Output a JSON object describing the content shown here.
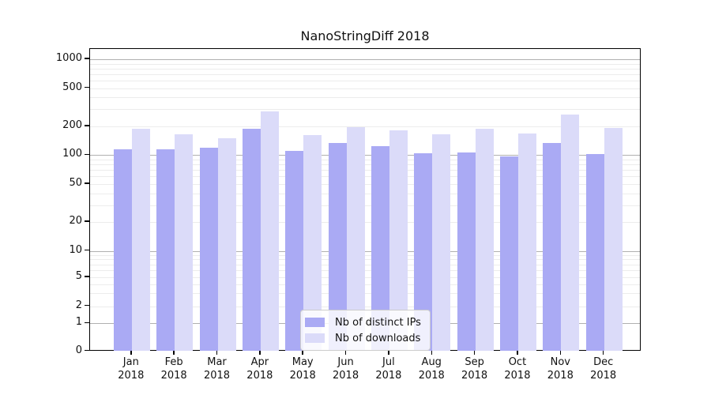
{
  "chart_data": {
    "type": "bar",
    "title": "NanoStringDiff 2018",
    "xlabel": "",
    "ylabel": "",
    "year_label": "2018",
    "categories": [
      "Jan",
      "Feb",
      "Mar",
      "Apr",
      "May",
      "Jun",
      "Jul",
      "Aug",
      "Sep",
      "Oct",
      "Nov",
      "Dec"
    ],
    "series": [
      {
        "name": "Nb of distinct IPs",
        "color": "#aaaaf4",
        "values": [
          116,
          116,
          120,
          189,
          110,
          133,
          124,
          105,
          107,
          97,
          135,
          103
        ]
      },
      {
        "name": "Nb of downloads",
        "color": "#dbdbf9",
        "values": [
          189,
          166,
          150,
          287,
          163,
          194,
          183,
          166,
          187,
          169,
          265,
          193
        ]
      }
    ],
    "yticks": [
      1000,
      500,
      200,
      100,
      50,
      20,
      10,
      5,
      2,
      1,
      0
    ],
    "ylim": [
      0,
      1000
    ],
    "scale": "log-like (compressed near zero to include 0)",
    "grid": "horizontal, major lines at 1/10/100/1000, minor at other multiples",
    "legend_position": "inside bottom-center"
  },
  "colors": {
    "background": "#ffffff",
    "spine": "#000000",
    "major_grid": "#b0b0b0",
    "minor_grid": "#ececec",
    "text": "#111111",
    "legend_border": "#cccccc"
  }
}
